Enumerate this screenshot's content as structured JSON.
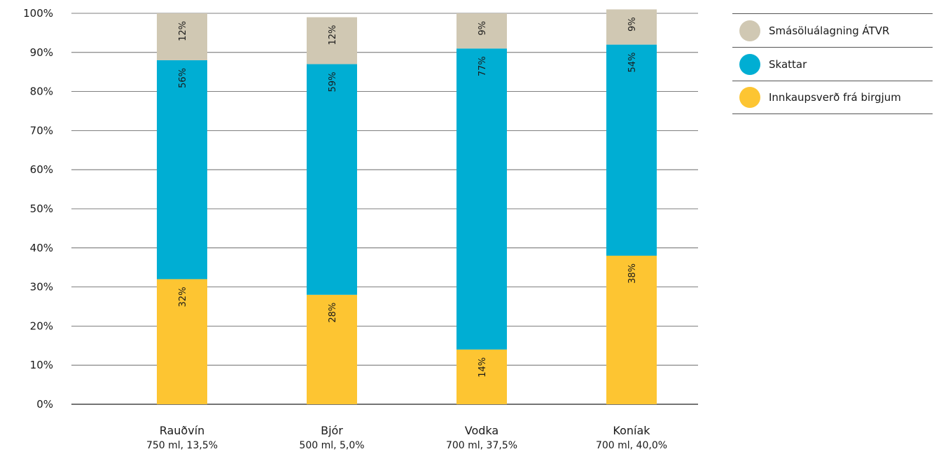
{
  "chart_data": {
    "type": "bar",
    "stacked": true,
    "categories": [
      "Rauðvín",
      "Bjór",
      "Vodka",
      "Koníak"
    ],
    "category_sublabels": [
      "750 ml, 13,5%",
      "500 ml, 5,0%",
      "700 ml, 37,5%",
      "700 ml, 40,0%"
    ],
    "series": [
      {
        "name": "Innkaupsverð frá birgjum",
        "color": "#fdc532",
        "values": [
          32,
          28,
          14,
          38
        ],
        "labels": [
          "32%",
          "28%",
          "14%",
          "38%"
        ]
      },
      {
        "name": "Skattar",
        "color": "#00aed3",
        "values": [
          56,
          59,
          77,
          54
        ],
        "labels": [
          "56%",
          "59%",
          "77%",
          "54%"
        ]
      },
      {
        "name": "Smásöluálagning ÁTVR",
        "color": "#d0c8b3",
        "values": [
          12,
          12,
          9,
          9
        ],
        "labels": [
          "12%",
          "12%",
          "9%",
          "9%"
        ]
      }
    ],
    "y_ticks": [
      "0%",
      "10%",
      "20%",
      "30%",
      "40%",
      "50%",
      "60%",
      "70%",
      "80%",
      "90%",
      "100%"
    ],
    "ylim": [
      0,
      100
    ],
    "grid": true,
    "legend_position": "right",
    "legend_order": [
      "Smásöluálagning ÁTVR",
      "Skattar",
      "Innkaupsverð frá birgjum"
    ]
  }
}
